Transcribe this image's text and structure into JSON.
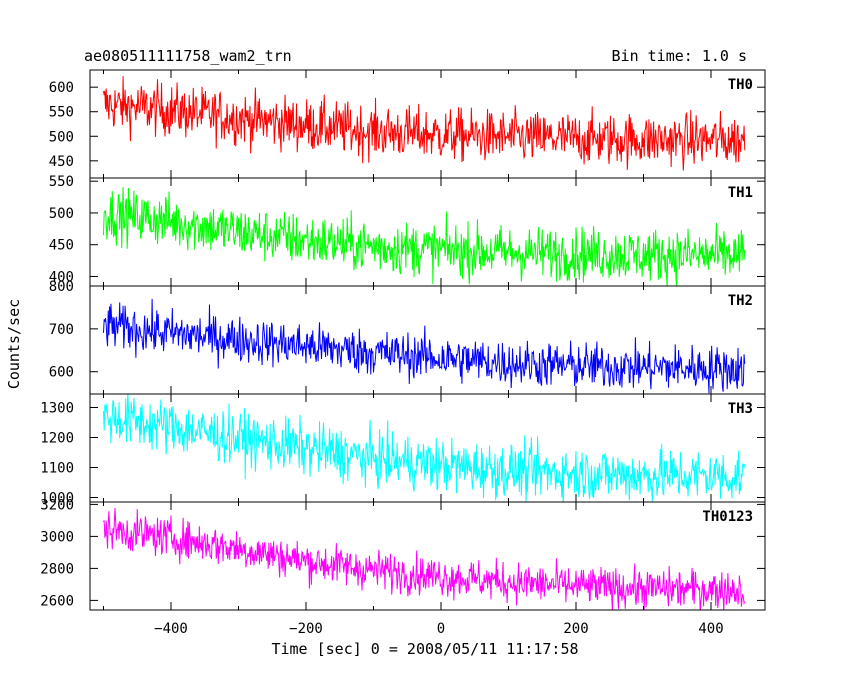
{
  "header": {
    "title": "ae080511111758_wam2_trn",
    "bin_time": "Bin time: 1.0 s"
  },
  "chart_data": {
    "type": "line",
    "xlabel": "Time [sec] 0 = 2008/05/11 11:17:58",
    "ylabel": "Counts/sec",
    "xlim": [
      -520,
      480
    ],
    "xticks": [
      -400,
      -200,
      0,
      200,
      400
    ],
    "x_range": [
      -500,
      450
    ],
    "x_step": 1,
    "panels": [
      {
        "name": "TH0",
        "color": "#ff0000",
        "ylim": [
          415,
          635
        ],
        "yticks": [
          450,
          500,
          550,
          600
        ],
        "trend_points": [
          [
            -500,
            565
          ],
          [
            -400,
            553
          ],
          [
            -300,
            537
          ],
          [
            -200,
            523
          ],
          [
            -100,
            510
          ],
          [
            0,
            503
          ],
          [
            100,
            498
          ],
          [
            200,
            495
          ],
          [
            300,
            493
          ],
          [
            450,
            492
          ]
        ],
        "noise": 27
      },
      {
        "name": "TH1",
        "color": "#00ff00",
        "ylim": [
          385,
          555
        ],
        "yticks": [
          400,
          450,
          500,
          550
        ],
        "trend_points": [
          [
            -500,
            500
          ],
          [
            -400,
            487
          ],
          [
            -300,
            470
          ],
          [
            -200,
            457
          ],
          [
            -100,
            447
          ],
          [
            0,
            442
          ],
          [
            100,
            438
          ],
          [
            200,
            436
          ],
          [
            300,
            434
          ],
          [
            450,
            433
          ]
        ],
        "noise": 21
      },
      {
        "name": "TH2",
        "color": "#0000ff",
        "ylim": [
          548,
          800
        ],
        "yticks": [
          600,
          700,
          800
        ],
        "trend_points": [
          [
            -500,
            708
          ],
          [
            -400,
            690
          ],
          [
            -300,
            675
          ],
          [
            -200,
            660
          ],
          [
            -100,
            645
          ],
          [
            0,
            632
          ],
          [
            100,
            620
          ],
          [
            200,
            614
          ],
          [
            300,
            610
          ],
          [
            450,
            607
          ]
        ],
        "noise": 27
      },
      {
        "name": "TH3",
        "color": "#00ffff",
        "ylim": [
          985,
          1345
        ],
        "yticks": [
          1000,
          1100,
          1200,
          1300
        ],
        "trend_points": [
          [
            -500,
            1270
          ],
          [
            -400,
            1235
          ],
          [
            -300,
            1198
          ],
          [
            -200,
            1163
          ],
          [
            -100,
            1130
          ],
          [
            0,
            1108
          ],
          [
            100,
            1090
          ],
          [
            200,
            1080
          ],
          [
            300,
            1075
          ],
          [
            450,
            1072
          ]
        ],
        "noise": 45
      },
      {
        "name": "TH0123",
        "color": "#ff00ff",
        "ylim": [
          2540,
          3215
        ],
        "yticks": [
          2600,
          2800,
          3000,
          3200
        ],
        "trend_points": [
          [
            -500,
            3050
          ],
          [
            -400,
            2990
          ],
          [
            -300,
            2925
          ],
          [
            -200,
            2845
          ],
          [
            -100,
            2790
          ],
          [
            0,
            2750
          ],
          [
            100,
            2715
          ],
          [
            200,
            2690
          ],
          [
            300,
            2675
          ],
          [
            450,
            2665
          ]
        ],
        "noise": 62
      }
    ]
  }
}
